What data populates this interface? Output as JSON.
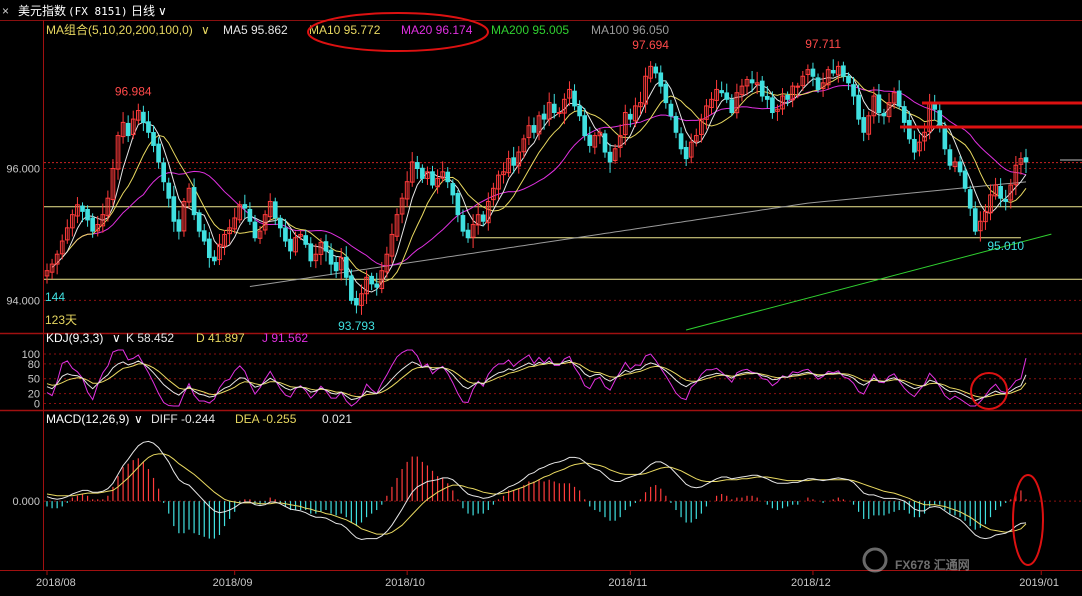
{
  "header": {
    "instrument": "美元指数",
    "code": "(FX 8151)",
    "period": "日线",
    "period_dropdown_icon": "chevron-down-icon",
    "close_icon": "close-icon"
  },
  "ma_legend": {
    "group": "MA组合(5,10,20,200,100,0)",
    "items": [
      {
        "label": "MA5 95.862",
        "color": "#e6e6e6"
      },
      {
        "label": "MA10 95.772",
        "color": "#e8d860"
      },
      {
        "label": "MA20 96.174",
        "color": "#e030e0"
      },
      {
        "label": "MA200 95.005",
        "color": "#30d030"
      },
      {
        "label": "MA100 96.050",
        "color": "#9a9a9a"
      }
    ]
  },
  "kdj_legend": {
    "group": "KDJ(9,3,3)",
    "items": [
      {
        "label": "K 58.452",
        "color": "#e6e6e6"
      },
      {
        "label": "D 41.897",
        "color": "#e8d860"
      },
      {
        "label": "J 91.562",
        "color": "#e030e0"
      }
    ]
  },
  "macd_legend": {
    "group": "MACD(12,26,9)",
    "items": [
      {
        "label": "DIFF -0.244",
        "color": "#e6e6e6"
      },
      {
        "label": "DEA -0.255",
        "color": "#e8d860"
      },
      {
        "label": "0.021",
        "color": "#e6e6e6"
      }
    ]
  },
  "side_labels": {
    "count": "144",
    "days": "123天"
  },
  "watermark": "FX678 汇通网",
  "colors": {
    "up": "#ff3b3b",
    "down": "#40e0e0",
    "grid": "#8a1010",
    "axis_text": "#c8c8c8",
    "annotation_red": "#dd1111"
  },
  "chart_data": [
    {
      "type": "candlestick",
      "title": "美元指数 (FX 8151) 日线",
      "x_ticks": [
        "2018/08",
        "2018/09",
        "2018/10",
        "2018/11",
        "2018/12",
        "2019/01"
      ],
      "y_ticks": [
        "94.000",
        "96.000"
      ],
      "ylim": [
        93.55,
        97.95
      ],
      "current_price": 96.09,
      "annotations": [
        {
          "label": "96.984",
          "index": 17,
          "value": 96.984
        },
        {
          "label": "93.793",
          "index": 61,
          "value": 93.793
        },
        {
          "label": "97.694",
          "index": 119,
          "value": 97.694
        },
        {
          "label": "97.711",
          "index": 153,
          "value": 97.711
        },
        {
          "label": "95.010",
          "index": 189,
          "value": 95.01
        }
      ],
      "horizontal_levels": [
        95.42,
        94.95,
        94.32
      ],
      "closes": [
        94.45,
        94.55,
        94.7,
        94.9,
        95.1,
        95.3,
        95.45,
        95.35,
        95.22,
        95.05,
        95.15,
        95.3,
        95.55,
        96.0,
        96.5,
        96.7,
        96.5,
        96.75,
        96.88,
        96.7,
        96.55,
        96.35,
        96.1,
        95.8,
        95.55,
        95.2,
        95.05,
        95.5,
        95.7,
        95.3,
        95.05,
        94.9,
        94.65,
        94.6,
        94.85,
        95.0,
        95.1,
        95.25,
        95.45,
        95.4,
        95.2,
        94.95,
        95.05,
        95.3,
        95.5,
        95.25,
        95.1,
        94.9,
        94.75,
        94.95,
        95.0,
        94.85,
        94.6,
        94.7,
        94.88,
        94.75,
        94.55,
        94.45,
        94.65,
        94.35,
        94.0,
        93.93,
        94.1,
        94.35,
        94.25,
        94.2,
        94.45,
        94.7,
        95.0,
        95.3,
        95.55,
        95.8,
        96.1,
        96.0,
        95.85,
        95.95,
        95.75,
        95.85,
        95.95,
        95.8,
        95.6,
        95.3,
        95.05,
        94.95,
        95.15,
        95.3,
        95.2,
        95.5,
        95.7,
        95.9,
        95.95,
        96.15,
        96.05,
        96.25,
        96.45,
        96.65,
        96.55,
        96.8,
        96.75,
        97.0,
        96.85,
        96.85,
        97.05,
        97.2,
        96.95,
        96.8,
        96.5,
        96.35,
        96.5,
        96.55,
        96.25,
        96.1,
        96.3,
        96.5,
        96.85,
        96.75,
        96.95,
        97.0,
        97.4,
        97.55,
        97.45,
        97.25,
        97.0,
        96.8,
        96.55,
        96.3,
        96.15,
        96.4,
        96.5,
        96.75,
        96.95,
        97.05,
        97.2,
        97.15,
        97.05,
        96.85,
        97.15,
        97.25,
        97.35,
        97.3,
        97.3,
        97.1,
        97.05,
        96.85,
        96.9,
        97.1,
        97.05,
        97.25,
        97.25,
        97.4,
        97.5,
        97.4,
        97.2,
        97.3,
        97.5,
        97.45,
        97.55,
        97.4,
        97.3,
        97.1,
        96.75,
        96.55,
        96.8,
        97.1,
        96.85,
        96.8,
        97.0,
        97.15,
        96.95,
        96.7,
        96.45,
        96.25,
        96.4,
        96.55,
        97.0,
        96.9,
        96.65,
        96.3,
        96.05,
        96.1,
        95.95,
        95.7,
        95.4,
        95.05,
        95.2,
        95.35,
        95.6,
        95.75,
        95.55,
        95.5,
        95.75,
        96.05,
        96.15,
        96.1
      ],
      "ma200_endpoints": [
        {
          "index": 126,
          "value": 93.55
        },
        {
          "index": 198,
          "value": 95.005
        }
      ],
      "series": [
        {
          "name": "MA5",
          "color": "#e6e6e6"
        },
        {
          "name": "MA10",
          "color": "#e8d860"
        },
        {
          "name": "MA20",
          "color": "#e030e0"
        },
        {
          "name": "MA200",
          "color": "#30d030"
        },
        {
          "name": "MA100",
          "color": "#9a9a9a"
        }
      ]
    },
    {
      "type": "line",
      "title": "KDJ(9,3,3)",
      "y_ticks": [
        "100",
        "80",
        "50",
        "20",
        "0"
      ],
      "ylim": [
        -5,
        108
      ],
      "k": [
        34,
        30,
        40,
        55,
        60,
        57,
        56,
        51,
        39,
        30,
        40,
        50,
        58,
        72,
        80,
        84,
        78,
        81,
        86,
        80,
        72,
        62,
        50,
        38,
        30,
        22,
        17,
        26,
        34,
        25,
        19,
        17,
        13,
        15,
        24,
        31,
        35,
        44,
        52,
        51,
        42,
        33,
        36,
        43,
        51,
        45,
        38,
        31,
        27,
        32,
        34,
        30,
        23,
        25,
        31,
        27,
        21,
        19,
        23,
        15,
        8,
        10,
        14,
        25,
        22,
        20,
        29,
        38,
        49,
        60,
        69,
        77,
        84,
        80,
        73,
        76,
        68,
        71,
        73,
        67,
        58,
        46,
        35,
        30,
        37,
        43,
        39,
        49,
        56,
        62,
        64,
        70,
        67,
        72,
        77,
        82,
        77,
        83,
        80,
        85,
        79,
        79,
        84,
        87,
        79,
        72,
        60,
        54,
        58,
        59,
        50,
        45,
        51,
        58,
        67,
        63,
        68,
        69,
        78,
        82,
        79,
        73,
        66,
        57,
        47,
        39,
        34,
        41,
        44,
        51,
        56,
        58,
        61,
        59,
        56,
        51,
        58,
        61,
        63,
        61,
        61,
        56,
        54,
        48,
        49,
        54,
        53,
        58,
        58,
        61,
        63,
        60,
        55,
        57,
        61,
        60,
        62,
        58,
        56,
        51,
        42,
        37,
        43,
        51,
        45,
        44,
        49,
        52,
        47,
        41,
        35,
        30,
        33,
        37,
        47,
        44,
        38,
        30,
        24,
        25,
        21,
        16,
        11,
        6,
        10,
        14,
        20,
        25,
        21,
        20,
        25,
        32,
        36,
        58
      ],
      "d": [
        40,
        37,
        38,
        42,
        47,
        50,
        52,
        51,
        47,
        41,
        41,
        44,
        49,
        56,
        64,
        71,
        73,
        76,
        80,
        80,
        77,
        72,
        65,
        56,
        47,
        39,
        31,
        29,
        31,
        29,
        26,
        23,
        19,
        18,
        20,
        24,
        28,
        33,
        40,
        44,
        43,
        40,
        38,
        40,
        44,
        44,
        42,
        38,
        34,
        33,
        33,
        32,
        29,
        27,
        29,
        28,
        26,
        23,
        23,
        20,
        16,
        14,
        14,
        18,
        19,
        20,
        23,
        28,
        35,
        43,
        52,
        60,
        68,
        72,
        73,
        74,
        72,
        72,
        72,
        70,
        66,
        59,
        51,
        44,
        41,
        42,
        41,
        44,
        48,
        53,
        56,
        61,
        63,
        66,
        70,
        74,
        75,
        78,
        79,
        81,
        80,
        80,
        81,
        83,
        82,
        79,
        72,
        66,
        63,
        62,
        58,
        54,
        53,
        55,
        59,
        60,
        63,
        65,
        69,
        73,
        75,
        74,
        71,
        66,
        60,
        53,
        47,
        45,
        45,
        47,
        50,
        53,
        56,
        57,
        57,
        55,
        56,
        58,
        60,
        60,
        61,
        59,
        57,
        54,
        52,
        53,
        53,
        55,
        56,
        58,
        60,
        60,
        58,
        58,
        59,
        59,
        60,
        60,
        59,
        56,
        51,
        46,
        45,
        47,
        46,
        45,
        46,
        48,
        48,
        46,
        42,
        38,
        36,
        36,
        40,
        41,
        40,
        37,
        32,
        30,
        27,
        23,
        19,
        15,
        13,
        13,
        15,
        18,
        19,
        19,
        21,
        25,
        29,
        41.9
      ],
      "j": [
        22,
        16,
        44,
        81,
        86,
        71,
        64,
        51,
        23,
        8,
        38,
        62,
        76,
        104,
        112,
        110,
        88,
        91,
        98,
        80,
        62,
        42,
        20,
        2,
        -4,
        -12,
        -11,
        20,
        40,
        17,
        5,
        5,
        1,
        9,
        32,
        45,
        49,
        66,
        76,
        65,
        40,
        19,
        32,
        49,
        65,
        47,
        30,
        17,
        13,
        30,
        36,
        26,
        11,
        21,
        35,
        25,
        11,
        11,
        23,
        5,
        -8,
        2,
        14,
        39,
        28,
        20,
        41,
        58,
        77,
        94,
        103,
        111,
        116,
        96,
        73,
        80,
        60,
        69,
        75,
        61,
        42,
        20,
        3,
        2,
        29,
        45,
        35,
        59,
        72,
        80,
        80,
        88,
        75,
        84,
        91,
        98,
        81,
        93,
        82,
        93,
        77,
        77,
        90,
        95,
        73,
        58,
        36,
        30,
        48,
        53,
        34,
        27,
        47,
        64,
        83,
        69,
        78,
        77,
        96,
        100,
        87,
        71,
        56,
        39,
        21,
        11,
        8,
        33,
        42,
        59,
        68,
        68,
        71,
        63,
        54,
        43,
        62,
        67,
        69,
        63,
        61,
        50,
        48,
        36,
        43,
        56,
        53,
        64,
        62,
        67,
        69,
        60,
        49,
        55,
        65,
        62,
        66,
        54,
        50,
        41,
        24,
        19,
        39,
        59,
        43,
        42,
        55,
        60,
        45,
        31,
        21,
        14,
        27,
        39,
        61,
        50,
        34,
        16,
        8,
        15,
        9,
        2,
        -5,
        -12,
        4,
        16,
        30,
        39,
        25,
        22,
        33,
        46,
        50,
        91.562
      ]
    },
    {
      "type": "bar",
      "title": "MACD(12,26,9)",
      "y_ticks": [
        "0.000"
      ],
      "ylim": [
        -0.75,
        0.82
      ],
      "diff": [
        0.05,
        0.03,
        0.02,
        0.03,
        0.05,
        0.08,
        0.1,
        0.12,
        0.12,
        0.1,
        0.1,
        0.11,
        0.14,
        0.2,
        0.3,
        0.4,
        0.47,
        0.55,
        0.62,
        0.66,
        0.67,
        0.65,
        0.6,
        0.52,
        0.44,
        0.33,
        0.24,
        0.2,
        0.18,
        0.12,
        0.06,
        0.0,
        -0.06,
        -0.11,
        -0.13,
        -0.12,
        -0.1,
        -0.07,
        -0.03,
        -0.01,
        -0.01,
        -0.04,
        -0.05,
        -0.04,
        -0.01,
        -0.01,
        -0.03,
        -0.06,
        -0.09,
        -0.1,
        -0.11,
        -0.13,
        -0.16,
        -0.18,
        -0.18,
        -0.19,
        -0.22,
        -0.25,
        -0.26,
        -0.3,
        -0.36,
        -0.41,
        -0.43,
        -0.42,
        -0.42,
        -0.42,
        -0.39,
        -0.34,
        -0.27,
        -0.18,
        -0.09,
        0.01,
        0.1,
        0.16,
        0.19,
        0.22,
        0.23,
        0.24,
        0.26,
        0.26,
        0.24,
        0.19,
        0.13,
        0.08,
        0.06,
        0.05,
        0.03,
        0.04,
        0.06,
        0.09,
        0.12,
        0.16,
        0.18,
        0.21,
        0.25,
        0.3,
        0.32,
        0.36,
        0.38,
        0.41,
        0.43,
        0.44,
        0.46,
        0.49,
        0.49,
        0.48,
        0.44,
        0.39,
        0.36,
        0.34,
        0.29,
        0.24,
        0.22,
        0.22,
        0.25,
        0.27,
        0.29,
        0.31,
        0.36,
        0.41,
        0.44,
        0.44,
        0.41,
        0.37,
        0.31,
        0.25,
        0.19,
        0.16,
        0.15,
        0.16,
        0.19,
        0.22,
        0.25,
        0.27,
        0.27,
        0.25,
        0.26,
        0.27,
        0.28,
        0.29,
        0.29,
        0.27,
        0.25,
        0.22,
        0.2,
        0.2,
        0.2,
        0.21,
        0.21,
        0.23,
        0.25,
        0.25,
        0.24,
        0.23,
        0.24,
        0.25,
        0.26,
        0.25,
        0.24,
        0.21,
        0.15,
        0.09,
        0.07,
        0.07,
        0.05,
        0.03,
        0.03,
        0.03,
        0.02,
        0.0,
        -0.04,
        -0.09,
        -0.11,
        -0.11,
        -0.07,
        -0.06,
        -0.07,
        -0.11,
        -0.15,
        -0.18,
        -0.21,
        -0.26,
        -0.32,
        -0.38,
        -0.41,
        -0.42,
        -0.41,
        -0.38,
        -0.37,
        -0.36,
        -0.33,
        -0.28,
        -0.25,
        -0.244
      ],
      "dea": [
        0.08,
        0.07,
        0.06,
        0.06,
        0.06,
        0.06,
        0.07,
        0.08,
        0.09,
        0.09,
        0.09,
        0.1,
        0.11,
        0.12,
        0.16,
        0.21,
        0.26,
        0.32,
        0.38,
        0.44,
        0.49,
        0.52,
        0.53,
        0.53,
        0.51,
        0.47,
        0.42,
        0.38,
        0.34,
        0.3,
        0.25,
        0.2,
        0.15,
        0.1,
        0.06,
        0.02,
        0.0,
        -0.01,
        -0.02,
        -0.02,
        -0.02,
        -0.02,
        -0.03,
        -0.03,
        -0.03,
        -0.02,
        -0.02,
        -0.03,
        -0.04,
        -0.05,
        -0.06,
        -0.08,
        -0.09,
        -0.11,
        -0.12,
        -0.14,
        -0.15,
        -0.17,
        -0.19,
        -0.21,
        -0.24,
        -0.27,
        -0.31,
        -0.33,
        -0.35,
        -0.37,
        -0.37,
        -0.37,
        -0.35,
        -0.31,
        -0.27,
        -0.21,
        -0.15,
        -0.09,
        -0.03,
        0.02,
        0.06,
        0.1,
        0.13,
        0.16,
        0.18,
        0.18,
        0.17,
        0.15,
        0.14,
        0.12,
        0.1,
        0.09,
        0.08,
        0.08,
        0.09,
        0.1,
        0.12,
        0.14,
        0.16,
        0.19,
        0.21,
        0.24,
        0.27,
        0.29,
        0.32,
        0.34,
        0.36,
        0.39,
        0.41,
        0.42,
        0.43,
        0.42,
        0.41,
        0.4,
        0.38,
        0.35,
        0.33,
        0.31,
        0.3,
        0.3,
        0.3,
        0.3,
        0.31,
        0.33,
        0.35,
        0.37,
        0.38,
        0.38,
        0.36,
        0.34,
        0.31,
        0.28,
        0.25,
        0.23,
        0.22,
        0.22,
        0.22,
        0.23,
        0.24,
        0.24,
        0.24,
        0.25,
        0.25,
        0.26,
        0.27,
        0.27,
        0.27,
        0.26,
        0.25,
        0.24,
        0.23,
        0.23,
        0.23,
        0.23,
        0.23,
        0.24,
        0.24,
        0.24,
        0.24,
        0.24,
        0.24,
        0.24,
        0.24,
        0.23,
        0.21,
        0.19,
        0.17,
        0.15,
        0.13,
        0.11,
        0.1,
        0.09,
        0.07,
        0.05,
        0.03,
        0.0,
        -0.02,
        -0.04,
        -0.04,
        -0.04,
        -0.05,
        -0.06,
        -0.08,
        -0.1,
        -0.12,
        -0.15,
        -0.18,
        -0.22,
        -0.26,
        -0.29,
        -0.32,
        -0.33,
        -0.34,
        -0.35,
        -0.34,
        -0.33,
        -0.31,
        -0.255
      ]
    }
  ]
}
